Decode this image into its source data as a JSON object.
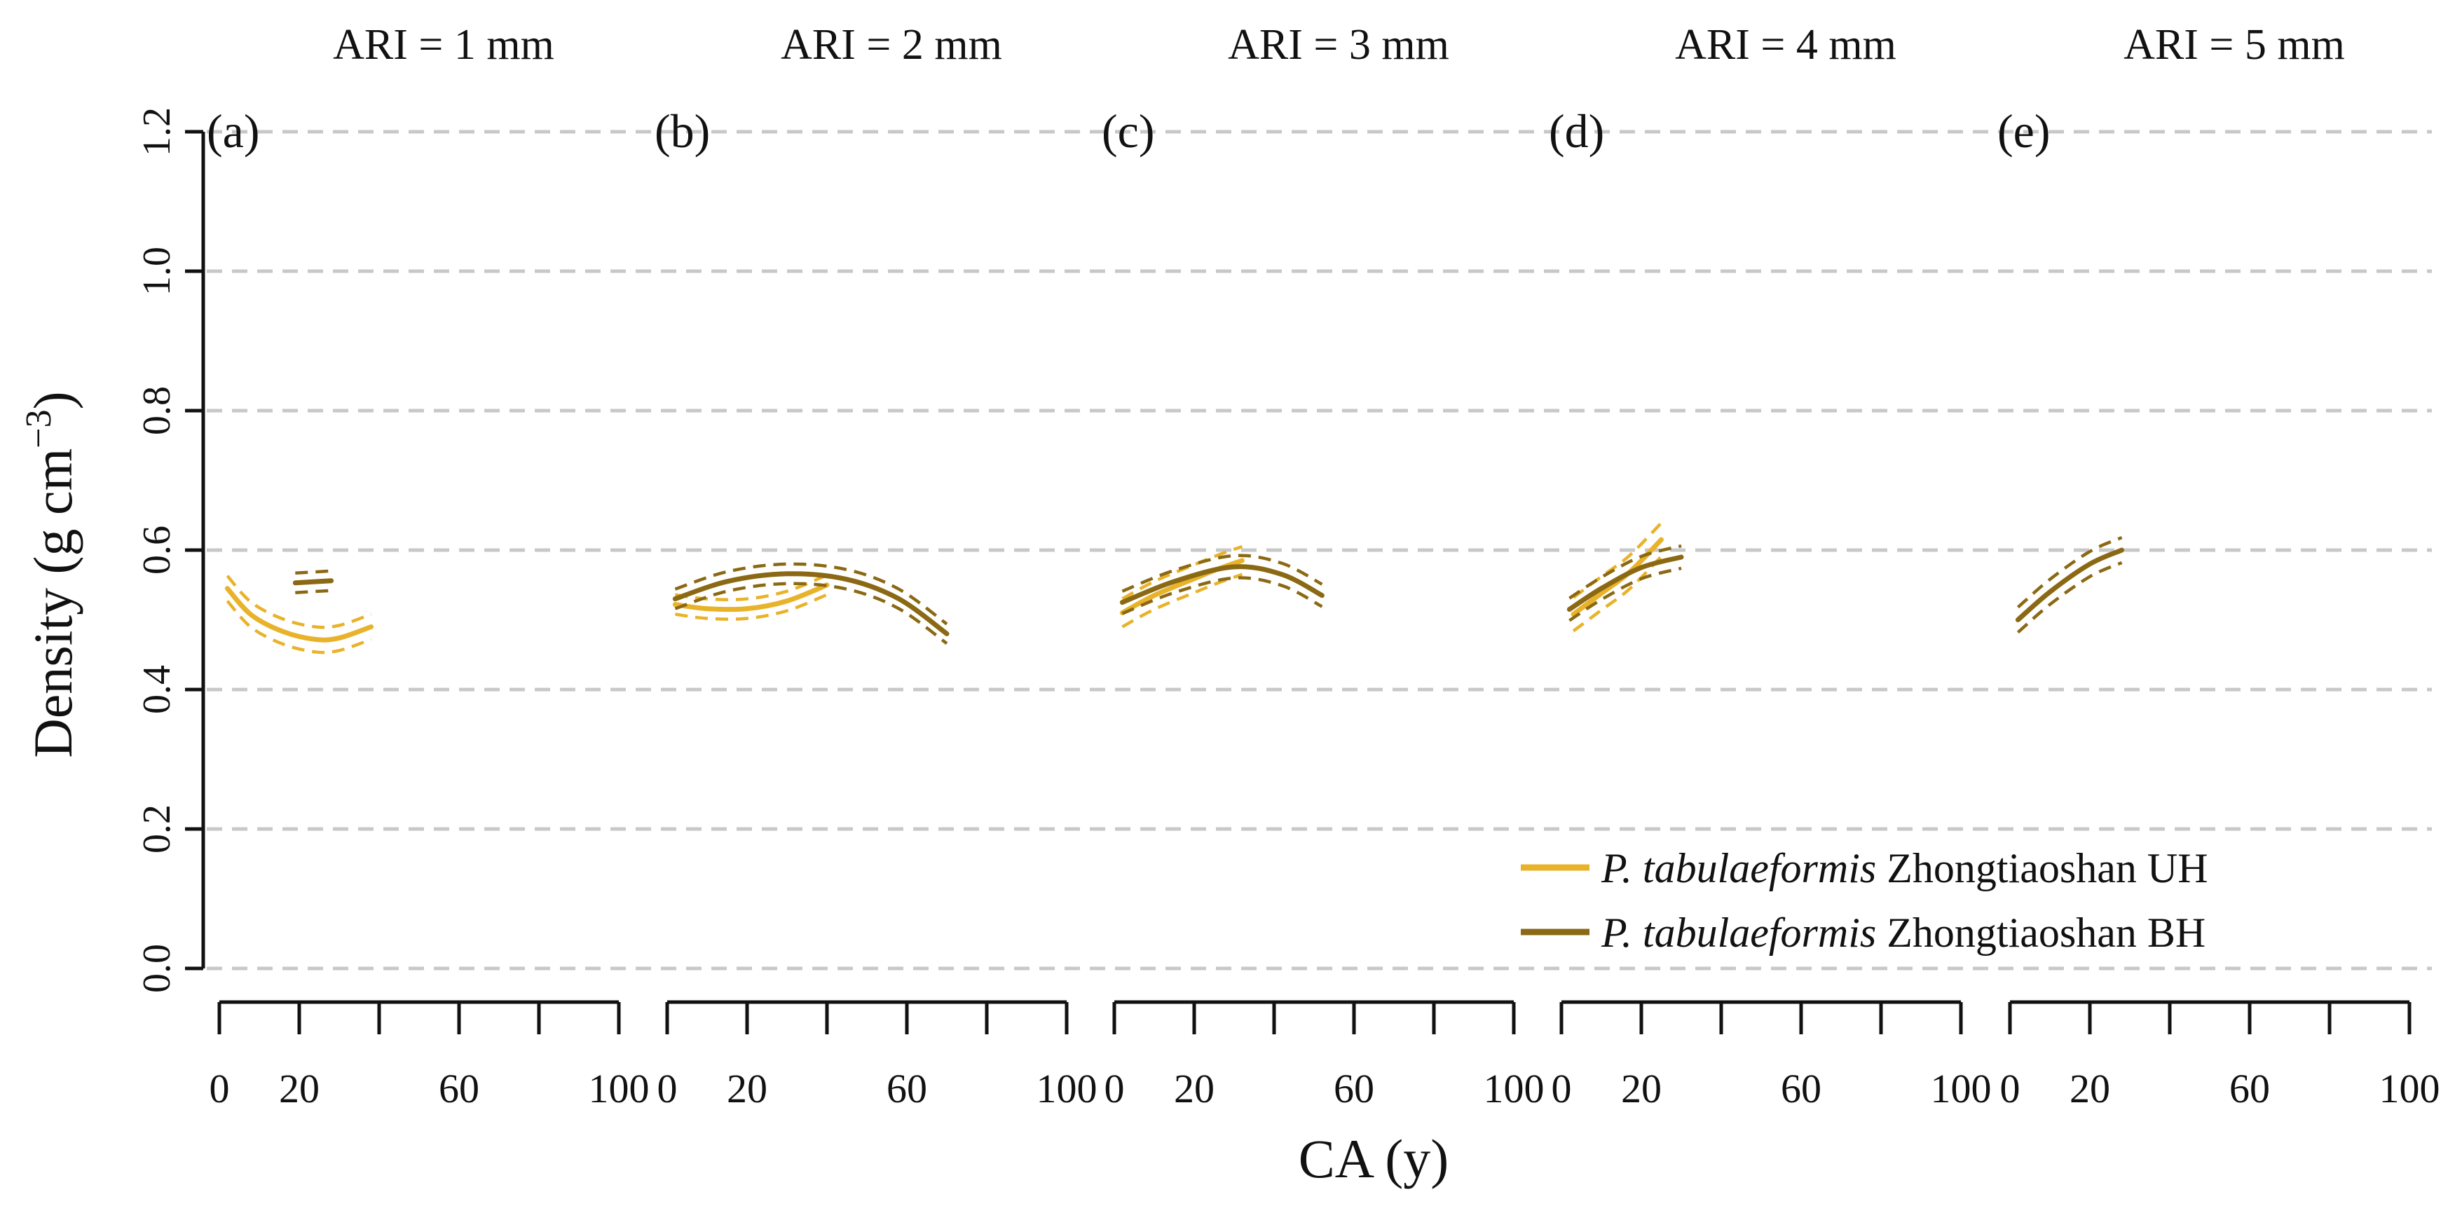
{
  "chart_data": {
    "type": "line",
    "ylabel_base": "Density (g cm",
    "ylabel_exp": "−3",
    "ylabel_close": ")",
    "xlabel": "CA (y)",
    "ylim": [
      0,
      1.2
    ],
    "yticks": [
      "0.0",
      "0.2",
      "0.4",
      "0.6",
      "0.8",
      "1.0",
      "1.2"
    ],
    "xlim": [
      0,
      100
    ],
    "xtick_labels": [
      [
        "0",
        "20",
        "60",
        "100"
      ],
      [
        "0",
        "20",
        "60",
        "100"
      ],
      [
        "0",
        "20",
        "60",
        "100"
      ],
      [
        "0",
        "20",
        "60",
        "100"
      ],
      [
        "0",
        "20",
        "60",
        "100"
      ]
    ],
    "xtick_label_positions": [
      0,
      20,
      60,
      100
    ],
    "legend": [
      {
        "species": "P. tabulaeformis",
        "site": " Zhongtiaoshan UH",
        "color": "#E8B32A"
      },
      {
        "species": "P. tabulaeformis",
        "site": " Zhongtiaoshan BH",
        "color": "#8B6914"
      }
    ],
    "panels": [
      {
        "title": "ARI = 1 mm",
        "letter": "(a)",
        "series": [
          {
            "name": "UH",
            "color": "#E8B32A",
            "x": [
              2,
              8,
              16,
              24,
              30,
              38
            ],
            "y": [
              0.545,
              0.507,
              0.483,
              0.472,
              0.474,
              0.49
            ],
            "ci_halfwidth": 0.018
          },
          {
            "name": "BH",
            "color": "#8B6914",
            "x": [
              19,
              28
            ],
            "y": [
              0.553,
              0.556
            ],
            "ci_halfwidth": 0.014
          }
        ]
      },
      {
        "title": "ARI = 2 mm",
        "letter": "(b)",
        "series": [
          {
            "name": "UH",
            "color": "#E8B32A",
            "x": [
              2,
              10,
              20,
              30,
              40
            ],
            "y": [
              0.522,
              0.516,
              0.516,
              0.527,
              0.55
            ],
            "ci_halfwidth": 0.014
          },
          {
            "name": "BH",
            "color": "#8B6914",
            "x": [
              2,
              15,
              30,
              45,
              58,
              70
            ],
            "y": [
              0.53,
              0.555,
              0.566,
              0.558,
              0.53,
              0.48
            ],
            "ci_halfwidth": 0.014
          }
        ]
      },
      {
        "title": "ARI = 3 mm",
        "letter": "(c)",
        "series": [
          {
            "name": "UH",
            "color": "#E8B32A",
            "x": [
              2,
              10,
              20,
              26,
              32
            ],
            "y": [
              0.51,
              0.535,
              0.559,
              0.573,
              0.585
            ],
            "ci_halfwidth": 0.02
          },
          {
            "name": "BH",
            "color": "#8B6914",
            "x": [
              2,
              15,
              30,
              42,
              52
            ],
            "y": [
              0.525,
              0.555,
              0.576,
              0.565,
              0.535
            ],
            "ci_halfwidth": 0.016
          }
        ]
      },
      {
        "title": "ARI = 4 mm",
        "letter": "(d)",
        "series": [
          {
            "name": "UH",
            "color": "#E8B32A",
            "x": [
              3,
              10,
              17,
              25
            ],
            "y": [
              0.508,
              0.538,
              0.568,
              0.615
            ],
            "ci_halfwidth": 0.024
          },
          {
            "name": "BH",
            "color": "#8B6914",
            "x": [
              2,
              10,
              20,
              30
            ],
            "y": [
              0.515,
              0.545,
              0.575,
              0.59
            ],
            "ci_halfwidth": 0.016
          }
        ]
      },
      {
        "title": "ARI = 5 mm",
        "letter": "(e)",
        "series": [
          {
            "name": "BH",
            "color": "#8B6914",
            "x": [
              2,
              10,
              20,
              28
            ],
            "y": [
              0.5,
              0.54,
              0.58,
              0.6
            ],
            "ci_halfwidth": 0.018
          }
        ]
      }
    ]
  }
}
